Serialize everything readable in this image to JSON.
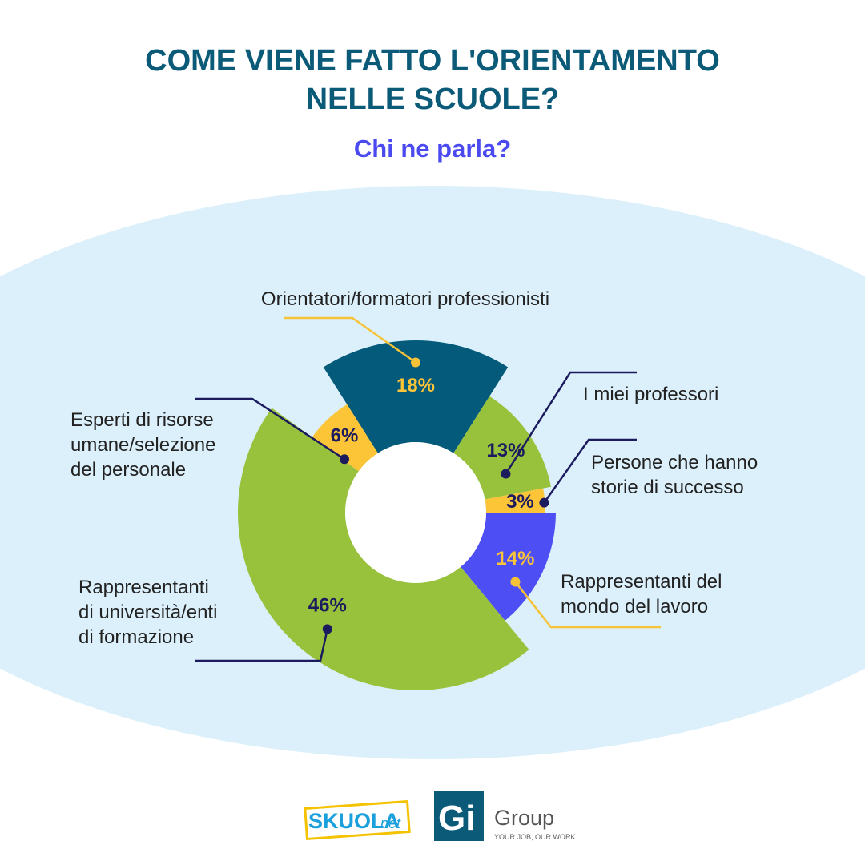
{
  "chart_data": {
    "type": "pie",
    "title": "COME VIENE FATTO L'ORIENTAMENTO\nNELLE SCUOLE?",
    "subtitle": "Chi ne parla?",
    "categories": [
      "Orientatori/formatori professionisti",
      "I miei professori",
      "Persone che hanno\nstorie di successo",
      "Rappresentanti del\nmondo del lavoro",
      "Rappresentanti\ndi università/enti\ndi formazione",
      "Esperti di risorse\numane/selezione\ndel personale"
    ],
    "values": [
      18,
      13,
      3,
      14,
      46,
      6
    ],
    "value_labels": [
      "18%",
      "13%",
      "3%",
      "14%",
      "46%",
      "6%"
    ],
    "colors": [
      "#045a7a",
      "#99c23c",
      "#fcc437",
      "#4d4ff5",
      "#99c23c",
      "#fcc437"
    ]
  },
  "logos": {
    "left": "SKUOLA",
    "left_suffix": ".net",
    "right_mark": "Gi",
    "right_name": "Group",
    "right_tagline": "YOUR JOB, OUR WORK"
  }
}
